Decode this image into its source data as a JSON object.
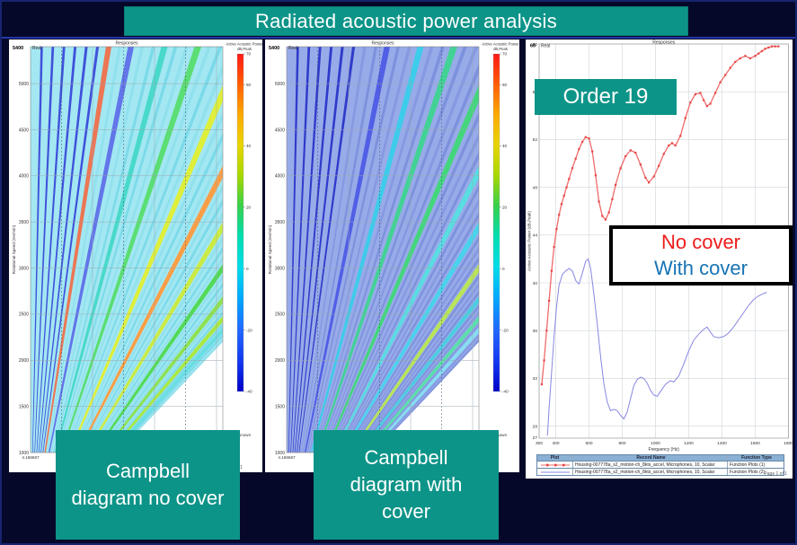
{
  "slide": {
    "title": "Radiated acoustic power analysis"
  },
  "colors": {
    "background": "#060829",
    "teal_accent": "#0d9488",
    "no_cover_red": "#ee1c1c",
    "with_cover_blue": "#1673b5",
    "curve_red": "#f06a6a",
    "curve_red_marker": "#e84444",
    "curve_blue": "#8787e2"
  },
  "captions": {
    "campbell_left": "Campbell diagram no cover",
    "campbell_right": "Campbell diagram with cover",
    "order": "Order 19"
  },
  "overlay_legend": {
    "no_cover": "No cover",
    "with_cover": "With cover"
  },
  "campbell_no_cover": {
    "title": "Responses",
    "corner_value": "5400",
    "corner_format": "Real",
    "y_ticks": [
      "5000",
      "4500",
      "4000",
      "3500",
      "3000",
      "2500",
      "2000",
      "1500",
      "1000"
    ],
    "y_label": "Rotational Speed (rev/min)",
    "x_ticks": [
      "4.166667",
      "500"
    ],
    "colorbar_title": "Active Acoustic Power",
    "colorbar_units": "dB,Peak",
    "colorbar_ticks": [
      "70",
      "60",
      "40",
      "20",
      "0",
      "-20",
      "-40"
    ],
    "colorbar_footer": "Unknown",
    "page_footer": "Page 1 of 1",
    "style": {
      "fan_bg": "#a3e7f2",
      "line_default": "#79d9e8",
      "line_alt": "#8fe0ec",
      "dark_max": 6,
      "dark_color": "#3b49d8",
      "highlights": {
        "7": "#f0704a",
        "9": "#5f6fe8",
        "12": "#45d8c8",
        "15": "#57dd6b",
        "19": "#e3ef2e",
        "23": "#ff9a3c",
        "27": "#cdeb3a",
        "31": "#4fd94f",
        "35": "#8de04a",
        "38": "#abe838",
        "40": "#64dde0"
      }
    }
  },
  "campbell_with_cover": {
    "title": "Responses",
    "corner_value": "5400",
    "corner_format": "Real",
    "y_ticks": [
      "5000",
      "4500",
      "4000",
      "3500",
      "3000",
      "2500",
      "2000",
      "1500",
      "1000"
    ],
    "y_label": "Rotational Speed (rev/min)",
    "x_ticks": [
      "4.166667",
      "500"
    ],
    "colorbar_title": "Active Acoustic Power",
    "colorbar_units": "dB,Peak",
    "colorbar_ticks": [
      "70",
      "60",
      "40",
      "20",
      "0",
      "-20",
      "-40"
    ],
    "colorbar_footer": "Unknown",
    "page_footer": "Page 1 of 1",
    "style": {
      "fan_bg": "#98abe9",
      "line_default": "#8598e0",
      "line_alt": "#7b8fdc",
      "dark_max": 6,
      "dark_color": "#2a35c8",
      "highlights": {
        "9": "#4d5ae6",
        "12": "#38cdea",
        "15": "#3ed490",
        "19": "#3fd877",
        "23": "#55dfe2",
        "27": "#44d5ec",
        "31": "#bae84e",
        "35": "#49cfe0",
        "38": "#58e0a8",
        "40": "#86dff2"
      }
    }
  },
  "order_chart": {
    "title": "Responses",
    "corner_value": "60",
    "corner_format": "Real",
    "y_ticks": [
      60,
      56,
      52,
      48,
      44,
      40,
      36,
      32,
      28
    ],
    "y_min_label": "27",
    "y_label": "Active Acoustic Power (dB,Peak)",
    "x_ticks": [
      300,
      400,
      600,
      800,
      1000,
      1200,
      1400,
      1600,
      1800
    ],
    "x_label": "Frequency (Hz)",
    "page_footer": "Page 1 of 1",
    "table": {
      "headers": [
        "Plot",
        "Record Name",
        "Function Type"
      ],
      "rows": [
        {
          "plot": "red-marker-line",
          "record": "Housing-007778a_s2_motion-ch_8kts_accel, Microphones, 10, Scalar",
          "type": "Function Plots (1)"
        },
        {
          "plot": "blue-line",
          "record": "Housing-007778a_s2_motion-ch_8kts_accel, Microphones, 10, Scalar",
          "type": "Function Plots (2)"
        }
      ]
    }
  },
  "chart_data": [
    {
      "type": "heatmap",
      "name": "Campbell diagram no cover",
      "title": "Responses",
      "xlabel": "Frequency (Hz)",
      "ylabel": "Rotational Speed (rev/min)",
      "x_first_tick": "4.166667",
      "x_second_tick": "500",
      "ylim": [
        1000,
        5400
      ],
      "colorbar_label": "Active Acoustic Power dB,Peak",
      "colorbar_ticks": [
        70,
        60,
        40,
        20,
        0,
        -20,
        -40
      ],
      "description": "Order-line fan radiating from low frequency/low rpm; overall cyan background with green, yellow and orange resonance streaks (higher radiated power without cover)."
    },
    {
      "type": "heatmap",
      "name": "Campbell diagram with cover",
      "title": "Responses",
      "xlabel": "Frequency (Hz)",
      "ylabel": "Rotational Speed (rev/min)",
      "x_first_tick": "4.166667",
      "x_second_tick": "500",
      "ylim": [
        1000,
        5400
      ],
      "colorbar_label": "Active Acoustic Power dB,Peak",
      "colorbar_ticks": [
        70,
        60,
        40,
        20,
        0,
        -20,
        -40
      ],
      "description": "Same order-line fan but predominantly blue/periwinkle with cyan-green streaks (lower radiated power with cover)."
    },
    {
      "type": "line",
      "name": "Order 19 section",
      "title": "Responses",
      "xlabel": "Frequency (Hz)",
      "ylabel": "Active Acoustic Power (dB,Peak)",
      "xlim": [
        300,
        1840
      ],
      "ylim": [
        27,
        60
      ],
      "grid": true,
      "legend_position": "overlay box center-right",
      "series": [
        {
          "name": "No cover",
          "color": "#f06a6a",
          "marker": "square",
          "x": [
            316,
            330,
            345,
            360,
            375,
            390,
            405,
            420,
            435,
            450,
            465,
            480,
            500,
            520,
            540,
            560,
            580,
            600,
            620,
            640,
            660,
            680,
            700,
            720,
            740,
            760,
            790,
            820,
            850,
            880,
            910,
            940,
            960,
            990,
            1020,
            1050,
            1080,
            1100,
            1120,
            1150,
            1180,
            1210,
            1240,
            1270,
            1290,
            1310,
            1330,
            1360,
            1390,
            1420,
            1450,
            1480,
            1510,
            1540,
            1570,
            1600,
            1620,
            1640,
            1660,
            1680,
            1700,
            1720,
            1740
          ],
          "y": [
            31.5,
            33.5,
            36,
            38.5,
            41,
            43,
            44.5,
            45.7,
            46.6,
            47.3,
            48,
            48.7,
            49.6,
            50.4,
            51.2,
            51.8,
            52.2,
            52.1,
            51,
            49,
            46.8,
            45.6,
            45.3,
            45.9,
            47,
            48.2,
            49.6,
            50.6,
            51.1,
            50.9,
            49.9,
            48.8,
            48.4,
            48.9,
            49.8,
            50.8,
            51.5,
            51.7,
            51.5,
            52.3,
            53.8,
            55.1,
            55.8,
            55.9,
            55.3,
            54.8,
            55,
            55.9,
            56.8,
            57.4,
            58,
            58.5,
            58.8,
            59,
            58.8,
            59,
            59.2,
            59.4,
            59.6,
            59.7,
            59.8,
            59.8,
            59.8
          ]
        },
        {
          "name": "With cover",
          "color": "#8787e2",
          "marker": "none",
          "x": [
            350,
            360,
            375,
            390,
            405,
            420,
            440,
            460,
            480,
            500,
            520,
            540,
            560,
            580,
            595,
            610,
            630,
            650,
            670,
            690,
            710,
            730,
            750,
            770,
            790,
            810,
            830,
            850,
            870,
            890,
            910,
            930,
            950,
            970,
            990,
            1010,
            1030,
            1060,
            1090,
            1110,
            1140,
            1170,
            1200,
            1230,
            1260,
            1290,
            1310,
            1330,
            1350,
            1380,
            1410,
            1440,
            1470,
            1500,
            1530,
            1560,
            1590,
            1620,
            1650,
            1670
          ],
          "y": [
            27.2,
            29.5,
            32.5,
            35.5,
            38,
            39.8,
            40.7,
            41,
            41.2,
            41,
            40.2,
            39.9,
            40.8,
            41.8,
            42,
            41.2,
            39,
            36.5,
            33.8,
            31.5,
            30,
            29.3,
            29.4,
            29.3,
            28.9,
            28.6,
            29.2,
            30.3,
            31.4,
            31.9,
            32.1,
            32,
            31.6,
            31,
            30.6,
            30.5,
            30.9,
            31.5,
            31.8,
            31.7,
            32.2,
            33.2,
            34.3,
            35.2,
            35.7,
            36.1,
            36.3,
            35.9,
            35.5,
            35.4,
            35.5,
            35.8,
            36.3,
            36.9,
            37.5,
            38.1,
            38.6,
            38.9,
            39.1,
            39.2
          ]
        }
      ]
    }
  ]
}
